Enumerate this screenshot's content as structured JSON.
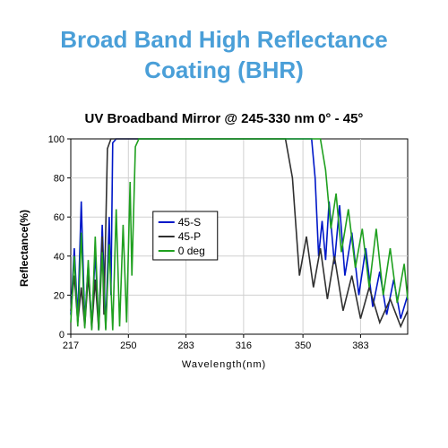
{
  "title": "Broad Band High Reflectance Coating (BHR)",
  "title_color": "#4a9fd8",
  "title_fontsize": 26,
  "chart": {
    "type": "line",
    "title": "UV Broadband Mirror @ 245-330 nm 0° - 45°",
    "title_fontsize": 15,
    "xlabel": "Wavelength(nm)",
    "ylabel": "Reflectance(%)",
    "label_fontsize": 12,
    "xlim": [
      217,
      410
    ],
    "ylim": [
      0,
      100
    ],
    "xticks": [
      217,
      250,
      283,
      316,
      350,
      383
    ],
    "yticks": [
      0,
      20,
      40,
      60,
      80,
      100
    ],
    "background_color": "#ffffff",
    "grid_color": "#d0d0d0",
    "axis_color": "#000000",
    "line_width": 1.6,
    "legend": {
      "position": "center-left",
      "items": [
        {
          "label": "45-S",
          "color": "#0018c8"
        },
        {
          "label": "45-P",
          "color": "#303030"
        },
        {
          "label": "0 deg",
          "color": "#1fa01f"
        }
      ]
    },
    "series": [
      {
        "name": "45-S",
        "color": "#0018c8",
        "x": [
          217,
          219,
          221,
          223,
          225,
          227,
          229,
          231,
          233,
          235,
          237,
          239,
          240,
          241,
          243,
          355,
          357,
          359,
          361,
          363,
          365,
          368,
          371,
          374,
          378,
          382,
          386,
          390,
          394,
          398,
          402,
          406,
          410
        ],
        "y": [
          10,
          44,
          8,
          68,
          6,
          36,
          4,
          42,
          2,
          56,
          3,
          60,
          20,
          98,
          100,
          100,
          80,
          40,
          58,
          38,
          68,
          36,
          66,
          30,
          52,
          20,
          44,
          14,
          32,
          10,
          28,
          8,
          20
        ]
      },
      {
        "name": "45-P",
        "color": "#303030",
        "x": [
          217,
          219,
          221,
          223,
          225,
          227,
          229,
          231,
          233,
          235,
          236,
          238,
          240,
          340,
          344,
          348,
          352,
          356,
          360,
          364,
          368,
          373,
          378,
          383,
          388,
          394,
          400,
          406,
          410
        ],
        "y": [
          12,
          30,
          6,
          24,
          4,
          30,
          3,
          28,
          2,
          50,
          10,
          95,
          100,
          100,
          80,
          30,
          50,
          24,
          44,
          18,
          40,
          12,
          30,
          8,
          24,
          6,
          18,
          4,
          12
        ]
      },
      {
        "name": "0 deg",
        "color": "#1fa01f",
        "x": [
          217,
          219,
          221,
          223,
          225,
          227,
          229,
          231,
          233,
          235,
          237,
          239,
          241,
          243,
          245,
          247,
          249,
          251,
          252,
          254,
          256,
          360,
          363,
          366,
          369,
          372,
          376,
          380,
          384,
          388,
          392,
          396,
          400,
          404,
          408,
          410
        ],
        "y": [
          6,
          40,
          4,
          52,
          3,
          38,
          2,
          50,
          2,
          42,
          2,
          46,
          2,
          64,
          4,
          56,
          6,
          78,
          30,
          96,
          100,
          100,
          84,
          54,
          72,
          42,
          64,
          34,
          54,
          24,
          54,
          20,
          44,
          16,
          36,
          18
        ]
      }
    ]
  }
}
